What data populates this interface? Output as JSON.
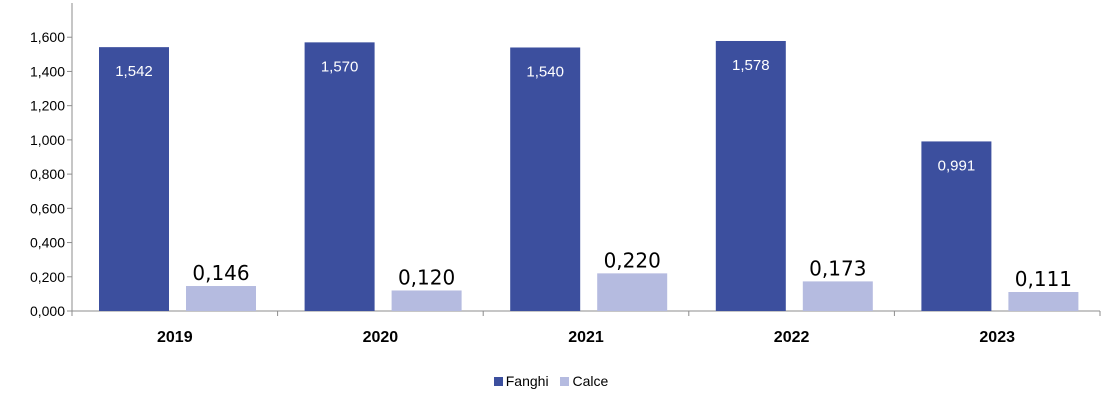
{
  "chart_data": {
    "type": "bar",
    "categories": [
      "2019",
      "2020",
      "2021",
      "2022",
      "2023"
    ],
    "series": [
      {
        "name": "Fanghi",
        "values": [
          1.542,
          1.57,
          1.54,
          1.578,
          0.991
        ],
        "labels": [
          "1,542",
          "1,570",
          "1,540",
          "1,578",
          "0,991"
        ],
        "color": "#3C4F9E"
      },
      {
        "name": "Calce",
        "values": [
          0.146,
          0.12,
          0.22,
          0.173,
          0.111
        ],
        "labels": [
          "0,146",
          "0,120",
          "0,220",
          "0,173",
          "0,111"
        ],
        "color": "#B5BBE0"
      }
    ],
    "yticks": [
      "0,000",
      "0,200",
      "0,400",
      "0,600",
      "0,800",
      "1,000",
      "1,200",
      "1,400",
      "1,600"
    ],
    "ylim": [
      0,
      1.8
    ],
    "grid": false,
    "legend_position": "bottom"
  }
}
